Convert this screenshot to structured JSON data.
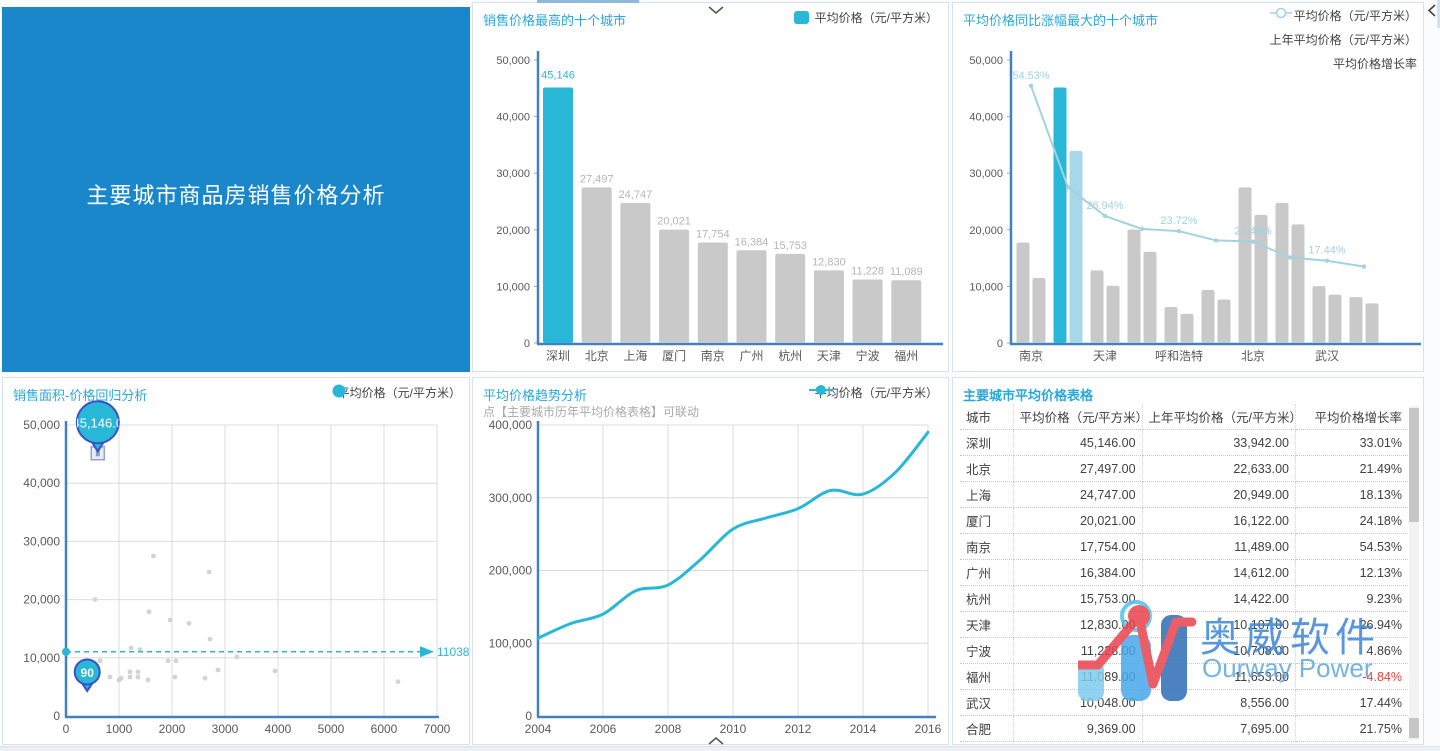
{
  "colors": {
    "accent_cyan": "#29b7d8",
    "light_blue_bar": "#a8d8e8",
    "gray_bar": "#c9c9c9",
    "growth_line": "#a3d2e2",
    "rate_label": "#9fd3e3",
    "axis_blue": "#4181c0",
    "grid": "#dcdcdc",
    "title_blue": "#28a8da",
    "banner_blue": "#1a87ca",
    "value_gray": "#b5b5b5",
    "negative_red": "#e8413d",
    "balloon_stroke": "#3a50c9",
    "scatter_dot": "#d3d3d3",
    "logo_blue_text": "#3c86d8",
    "logo_en_text": "#5ea6e0",
    "logo_light": "#7ecbee",
    "logo_mid": "#47a7ea",
    "logo_dark": "#2d6db4",
    "logo_red": "#e8424e"
  },
  "banner": {
    "title": "主要城市商品房销售价格分析"
  },
  "logo": {
    "name_cn": "奥威软件",
    "name_en": "Ourway Power"
  },
  "chart_data": [
    {
      "id": "top_cities_bar",
      "type": "bar",
      "title": "销售价格最高的十个城市",
      "legend": [
        "平均价格（元/平方米）"
      ],
      "categories": [
        "深圳",
        "北京",
        "上海",
        "厦门",
        "南京",
        "广州",
        "杭州",
        "天津",
        "宁波",
        "福州"
      ],
      "values": [
        45146,
        27497,
        24747,
        20021,
        17754,
        16384,
        15753,
        12830,
        11228,
        11089
      ],
      "value_labels": [
        "45,146",
        "27,497",
        "24,747",
        "20,021",
        "17,754",
        "16,384",
        "15,753",
        "12,830",
        "11,228",
        "11,089"
      ],
      "highlight_index": 0,
      "ylim": [
        0,
        50000
      ],
      "y_ticks": [
        "0",
        "10,000",
        "20,000",
        "30,000",
        "40,000",
        "50,000"
      ]
    },
    {
      "id": "growth_top10_combo",
      "type": "bar",
      "title": "平均价格同比涨幅最大的十个城市",
      "legend": [
        "平均价格（元/平方米）",
        "上年平均价格（元/平方米）",
        "平均价格增长率"
      ],
      "categories": [
        "南京",
        "",
        "天津",
        "",
        "呼和浩特",
        "",
        "北京",
        "",
        "武汉",
        ""
      ],
      "series": [
        {
          "name": "平均价格（元/平方米）",
          "values": [
            17754,
            45146,
            12830,
            20021,
            6350,
            9369,
            27497,
            24747,
            10048,
            8100
          ]
        },
        {
          "name": "上年平均价格（元/平方米）",
          "values": [
            11489,
            33942,
            10107,
            16122,
            5150,
            7695,
            22633,
            20949,
            8556,
            7000
          ]
        },
        {
          "name": "平均价格增长率",
          "values": [
            54.53,
            33.01,
            26.94,
            24.18,
            23.72,
            21.75,
            21.49,
            18.13,
            17.44,
            16.2
          ]
        }
      ],
      "rate_labels": [
        "54.53%",
        "",
        "26.94%",
        "",
        "23.72%",
        "",
        "21.49%",
        "",
        "17.44%",
        ""
      ],
      "highlight_index": 1,
      "ylim": [
        0,
        50000
      ],
      "rate_ylim": [
        0,
        60
      ],
      "y_ticks": [
        "0",
        "10,000",
        "20,000",
        "30,000",
        "40,000",
        "50,000"
      ]
    },
    {
      "id": "area_price_regression",
      "type": "scatter",
      "title": "销售面积-价格回归分析",
      "legend": [
        "平均价格（元/平方米）"
      ],
      "xlim": [
        0,
        7000
      ],
      "ylim": [
        0,
        50000
      ],
      "x_ticks": [
        "0",
        "1000",
        "2000",
        "3000",
        "4000",
        "5000",
        "6000",
        "7000"
      ],
      "y_ticks": [
        "0",
        "10,000",
        "20,000",
        "30,000",
        "40,000",
        "50,000"
      ],
      "points": [
        [
          358,
          6200
        ],
        [
          547,
          20021
        ],
        [
          641,
          9480
        ],
        [
          830,
          6700
        ],
        [
          1000,
          6200
        ],
        [
          1040,
          6500
        ],
        [
          1207,
          7580
        ],
        [
          1207,
          6700
        ],
        [
          1226,
          11700
        ],
        [
          1358,
          7580
        ],
        [
          1358,
          6700
        ],
        [
          1396,
          11400
        ],
        [
          1547,
          6200
        ],
        [
          1566,
          17900
        ],
        [
          1650,
          27497
        ],
        [
          1925,
          9480
        ],
        [
          1962,
          16500
        ],
        [
          2056,
          6700
        ],
        [
          2075,
          9480
        ],
        [
          2321,
          15900
        ],
        [
          2623,
          6500
        ],
        [
          2700,
          24747
        ],
        [
          2717,
          13200
        ],
        [
          2868,
          7900
        ],
        [
          3226,
          10150
        ],
        [
          3943,
          7750
        ],
        [
          6264,
          5900
        ]
      ],
      "highlight_point": [
        600,
        45146
      ],
      "balloon_labels": [
        "45,146.0",
        "90"
      ],
      "balloon2_point": [
        400,
        4300
      ],
      "ref_line": {
        "value": 11038,
        "label": "11038"
      }
    },
    {
      "id": "avg_price_trend",
      "type": "line",
      "title": "平均价格趋势分析",
      "subtitle": "点【主要城市历年平均价格表格】可联动",
      "legend": [
        "平均价格（元/平方米）"
      ],
      "x": [
        2004,
        2005,
        2006,
        2007,
        2008,
        2009,
        2010,
        2011,
        2012,
        2013,
        2014,
        2015,
        2016
      ],
      "values": [
        107000,
        127000,
        140000,
        172000,
        180000,
        215000,
        257000,
        272000,
        285000,
        310000,
        305000,
        335000,
        390000
      ],
      "ylim": [
        0,
        400000
      ],
      "x_tick_labels": [
        "2004",
        "2006",
        "2008",
        "2010",
        "2012",
        "2014",
        "2016"
      ],
      "y_ticks": [
        "0",
        "100,000",
        "200,000",
        "300,000",
        "400,000"
      ]
    },
    {
      "id": "city_price_table",
      "type": "table",
      "title": "主要城市平均价格表格",
      "headers": [
        "城市",
        "平均价格（元/平方米）",
        "上年平均价格（元/平方米）",
        "平均价格增长率"
      ],
      "rows": [
        [
          "深圳",
          "45,146.00",
          "33,942.00",
          "33.01%"
        ],
        [
          "北京",
          "27,497.00",
          "22,633.00",
          "21.49%"
        ],
        [
          "上海",
          "24,747.00",
          "20,949.00",
          "18.13%"
        ],
        [
          "厦门",
          "20,021.00",
          "16,122.00",
          "24.18%"
        ],
        [
          "南京",
          "17,754.00",
          "11,489.00",
          "54.53%"
        ],
        [
          "广州",
          "16,384.00",
          "14,612.00",
          "12.13%"
        ],
        [
          "杭州",
          "15,753.00",
          "14,422.00",
          "9.23%"
        ],
        [
          "天津",
          "12,830.00",
          "10,107.00",
          "26.94%"
        ],
        [
          "宁波",
          "11,228.00",
          "10,708.00",
          "4.86%"
        ],
        [
          "福州",
          "11,089.00",
          "11,653.00",
          "-4.84%"
        ],
        [
          "武汉",
          "10,048.00",
          "8,556.00",
          "17.44%"
        ],
        [
          "合肥",
          "9,369.00",
          "7,695.00",
          "21.75%"
        ]
      ]
    }
  ]
}
